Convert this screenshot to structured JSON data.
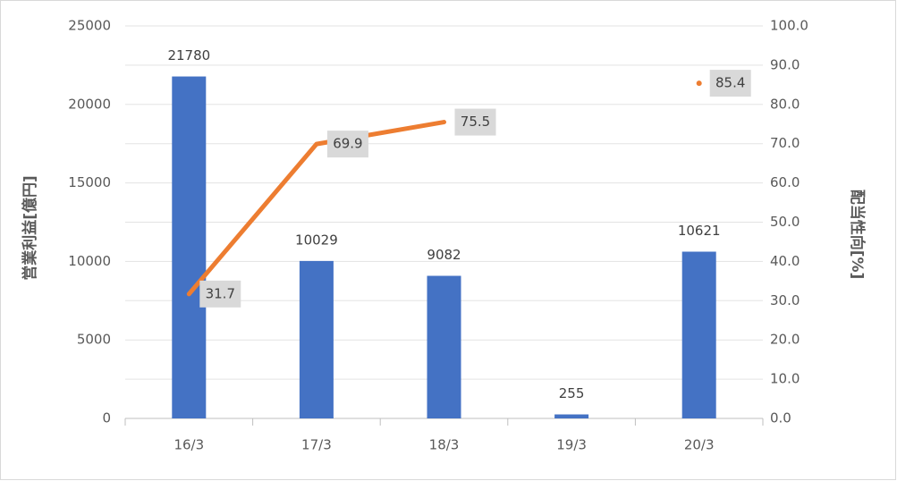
{
  "chart_data": {
    "type": "bar",
    "categories": [
      "16/3",
      "17/3",
      "18/3",
      "19/3",
      "20/3"
    ],
    "y_label": "営業利益[億円]",
    "y2_label": "配当性向[%]",
    "series": [
      {
        "name": "営業利益",
        "type": "bar",
        "color": "#4472c4",
        "values": [
          21780,
          10029,
          9082,
          255,
          10621
        ]
      },
      {
        "name": "配当性向",
        "type": "line",
        "axis": "y2",
        "color": "#ed7d31",
        "values": [
          31.7,
          69.9,
          75.5,
          null,
          85.4
        ]
      }
    ],
    "ylim": [
      0,
      25000
    ],
    "yticks": [
      0,
      5000,
      10000,
      15000,
      20000,
      25000
    ],
    "y2lim": [
      0,
      100
    ],
    "y2ticks": [
      {
        "value": 0,
        "label": "0.0"
      },
      {
        "value": 10,
        "label": "10.0"
      },
      {
        "value": 20,
        "label": "20.0"
      },
      {
        "value": 30,
        "label": "30.0"
      },
      {
        "value": 40,
        "label": "40.0"
      },
      {
        "value": 50,
        "label": "50.0"
      },
      {
        "value": 60,
        "label": "60.0"
      },
      {
        "value": 70,
        "label": "70.0"
      },
      {
        "value": 80,
        "label": "80.0"
      },
      {
        "value": 90,
        "label": "90.0"
      },
      {
        "value": 100,
        "label": "100.0"
      }
    ],
    "grid": true
  }
}
